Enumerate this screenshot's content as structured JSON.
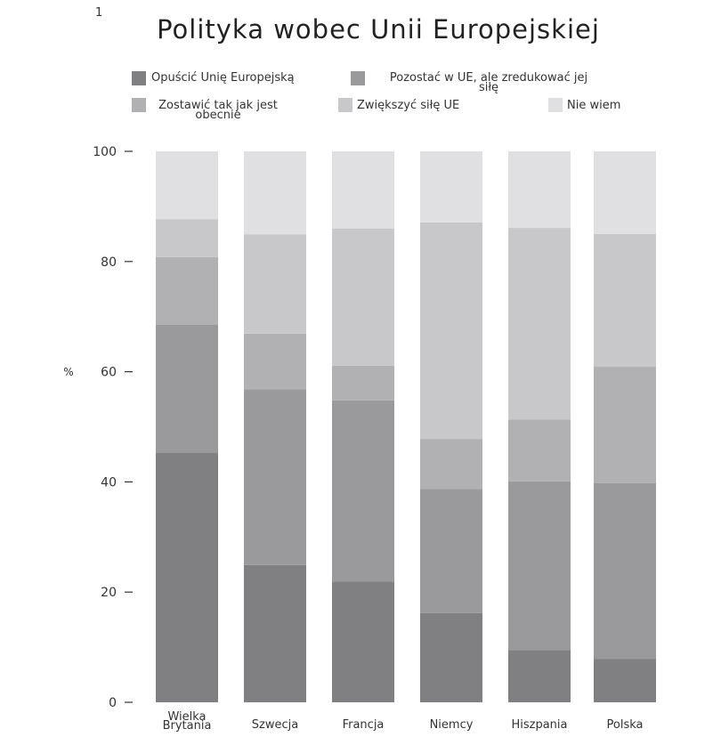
{
  "page_number": "1",
  "chart_data": {
    "type": "bar",
    "stacked": true,
    "title": "Polityka wobec Unii Europejskiej",
    "ylabel": "%",
    "ylim": [
      0,
      100
    ],
    "yticks": [
      0,
      20,
      40,
      60,
      80,
      100
    ],
    "grid": false,
    "legend_placement": "top",
    "categories": [
      "Wielka\nBrytania",
      "Szwecja",
      "Francja",
      "Niemcy",
      "Hiszpania",
      "Polska"
    ],
    "series": [
      {
        "name": "Opuścić Unię Europejską",
        "color": "#808083",
        "values": [
          45.3,
          24.9,
          21.9,
          16.2,
          9.5,
          7.9
        ]
      },
      {
        "name": "Pozostać w UE, ale zredukować jej\nsiłę",
        "color": "#9a9a9d",
        "values": [
          23.2,
          31.9,
          32.9,
          22.5,
          30.6,
          31.9
        ]
      },
      {
        "name": "Zostawić tak jak jest\nobecnie",
        "color": "#b1b1b4",
        "values": [
          12.3,
          10.1,
          6.3,
          9.1,
          11.2,
          21.1
        ]
      },
      {
        "name": "Zwiększyć siłę UE",
        "color": "#c8c8cb",
        "values": [
          6.9,
          18.0,
          24.9,
          39.3,
          34.8,
          24.1
        ]
      },
      {
        "name": "Nie wiem",
        "color": "#e0e0e2",
        "values": [
          12.3,
          15.1,
          14.0,
          12.9,
          13.9,
          15.0
        ]
      }
    ]
  }
}
